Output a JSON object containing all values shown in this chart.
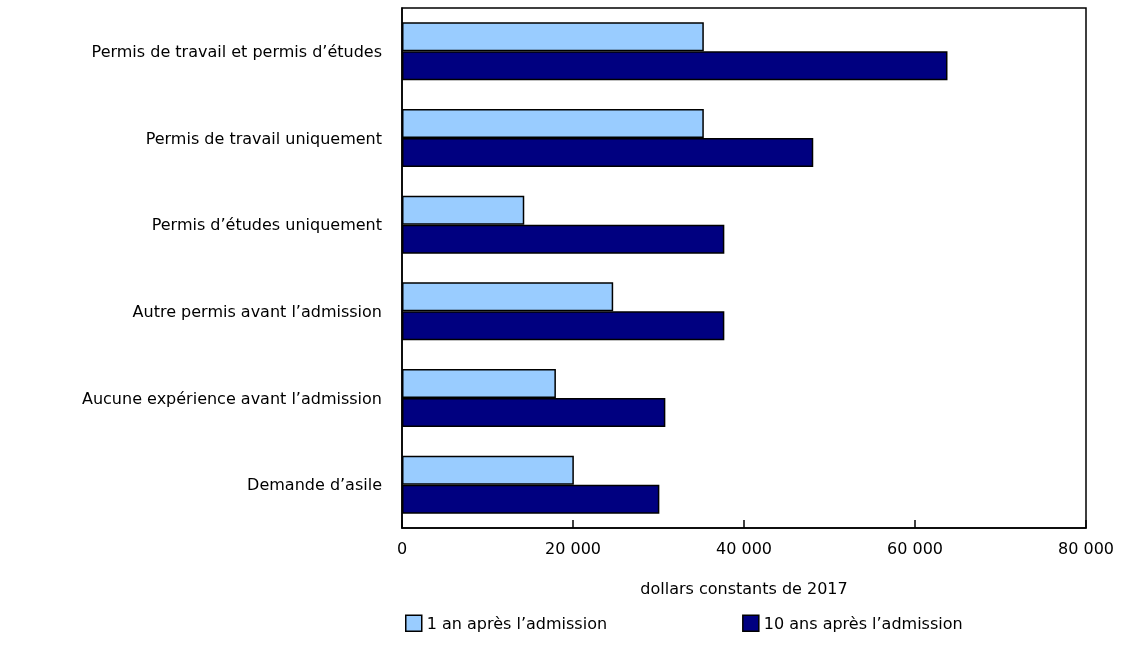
{
  "chart_data": {
    "type": "bar",
    "orientation": "horizontal",
    "xlabel": "dollars constants de 2017",
    "categories": [
      "Permis de travail et permis d’études",
      "Permis de travail uniquement",
      "Permis d’études uniquement",
      "Autre permis avant l’admission",
      "Aucune expérience avant l’admission",
      "Demande d’asile"
    ],
    "series": [
      {
        "name": "1 an après l’admission",
        "color": "#99ccff",
        "values": [
          35300,
          35300,
          14300,
          24700,
          18000,
          20100
        ]
      },
      {
        "name": "10 ans après l’admission",
        "color": "#000080",
        "values": [
          63800,
          48100,
          37700,
          37700,
          30800,
          30100
        ]
      }
    ],
    "xlim": [
      0,
      80000
    ],
    "xticks": [
      {
        "value": 0,
        "label": "0"
      },
      {
        "value": 20000,
        "label": "20 000"
      },
      {
        "value": 40000,
        "label": "40 000"
      },
      {
        "value": 60000,
        "label": "60 000"
      },
      {
        "value": 80000,
        "label": "80 000"
      }
    ],
    "grid": false,
    "legend": "bottom"
  }
}
